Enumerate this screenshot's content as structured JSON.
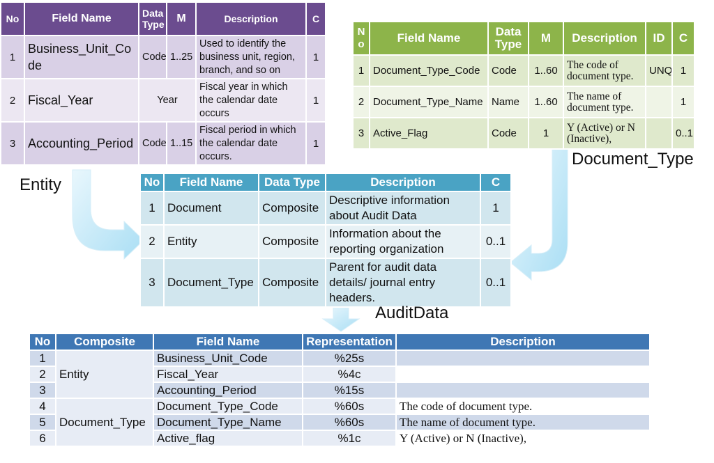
{
  "entity_table": {
    "caption": "Entity",
    "headers": {
      "no": "No",
      "field_name": "Field Name",
      "data_type": "Data Type",
      "m": "M",
      "description": "Description",
      "c": "C"
    },
    "rows": [
      {
        "no": "1",
        "field_name": "Business_Unit_Code",
        "data_type": "Code",
        "m": "1..25",
        "description": "Used to identify the business unit, region, branch, and so on",
        "c": "1"
      },
      {
        "no": "2",
        "field_name": "Fiscal_Year",
        "data_type": "Year",
        "m": "",
        "description": "Fiscal year in which the calendar date occurs",
        "c": "1"
      },
      {
        "no": "3",
        "field_name": "Accounting_Period",
        "data_type": "Code",
        "m": "1..15",
        "description": "Fiscal period in which the calendar date occurs.",
        "c": "1"
      }
    ]
  },
  "doctype_table": {
    "caption": "Document_Type",
    "headers": {
      "no": "No",
      "field_name": "Field Name",
      "data_type": "Data Type",
      "m": "M",
      "description": "Description",
      "id": "ID",
      "c": "C"
    },
    "rows": [
      {
        "no": "1",
        "field_name": "Document_Type_Code",
        "data_type": "Code",
        "m": "1..60",
        "description": "The code of document type.",
        "id": "UNQ",
        "c": "1"
      },
      {
        "no": "2",
        "field_name": "Document_Type_Name",
        "data_type": "Name",
        "m": "1..60",
        "description": "The name of document type.",
        "id": "",
        "c": "1"
      },
      {
        "no": "3",
        "field_name": "Active_Flag",
        "data_type": "Code",
        "m": "1",
        "description": "Y (Active) or N (Inactive),",
        "id": "",
        "c": "0..1"
      }
    ]
  },
  "audit_table": {
    "caption": "AuditData",
    "headers": {
      "no": "No",
      "field_name": "Field Name",
      "data_type": "Data Type",
      "description": "Description",
      "c": "C"
    },
    "rows": [
      {
        "no": "1",
        "field_name": "Document",
        "data_type": "Composite",
        "description": "Descriptive information about Audit Data",
        "c": "1"
      },
      {
        "no": "2",
        "field_name": "Entity",
        "data_type": "Composite",
        "description": "Information about the reporting organization",
        "c": "0..1"
      },
      {
        "no": "3",
        "field_name": "Document_Type",
        "data_type": "Composite",
        "description": "Parent for audit data details/ journal entry headers.",
        "c": "0..1"
      }
    ]
  },
  "bottom_table": {
    "headers": {
      "no": "No",
      "composite": "Composite",
      "field_name": "Field Name",
      "representation": "Representation",
      "description": "Description"
    },
    "groups": {
      "entity": "Entity",
      "document_type": "Document_Type"
    },
    "rows": [
      {
        "no": "1",
        "field_name": "Business_Unit_Code",
        "representation": "%25s",
        "description": ""
      },
      {
        "no": "2",
        "field_name": "Fiscal_Year",
        "representation": "%4c",
        "description": ""
      },
      {
        "no": "3",
        "field_name": "Accounting_Period",
        "representation": "%15s",
        "description": ""
      },
      {
        "no": "4",
        "field_name": "Document_Type_Code",
        "representation": "%60s",
        "description": "The code of document type."
      },
      {
        "no": "5",
        "field_name": "Document_Type_Name",
        "representation": "%60s",
        "description": "The name of document type."
      },
      {
        "no": "6",
        "field_name": "Active_flag",
        "representation": "%1c",
        "description": "Y (Active) or N (Inactive),"
      }
    ]
  },
  "colors": {
    "entity_header": "#6b4c8f",
    "doctype_header": "#8db44a",
    "audit_header": "#4aa3c4",
    "bottom_header": "#3f77b4",
    "arrow": "#bfe6f7"
  }
}
